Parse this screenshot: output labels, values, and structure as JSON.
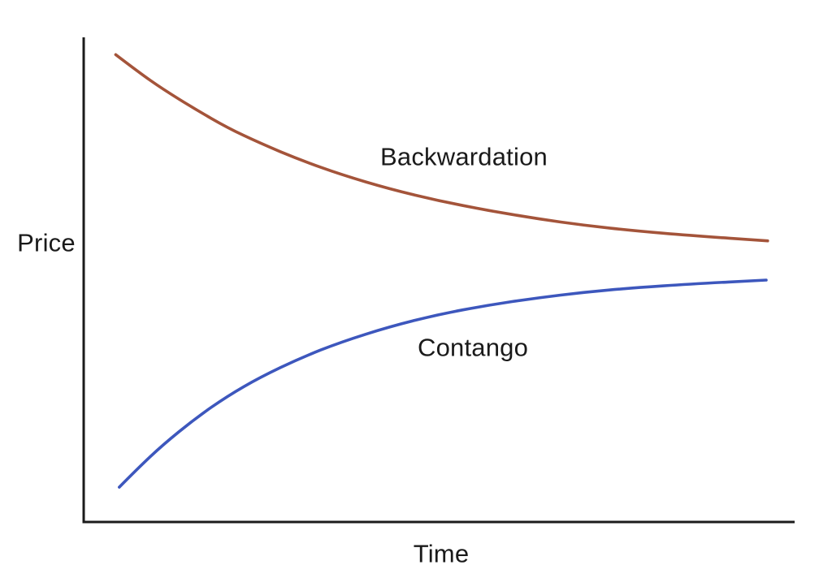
{
  "page": {
    "background_color": "#ffffff"
  },
  "chart_data": {
    "type": "line",
    "title": "",
    "xlabel": "Time",
    "ylabel": "Price",
    "grid": false,
    "legend_position": "inline-curve-annotations",
    "axes": {
      "axis_color": "#1b1b1b",
      "ticks_visible": false,
      "tick_labels": [],
      "x_range_norm": [
        0,
        1
      ],
      "y_range_norm": [
        0,
        1
      ]
    },
    "series": [
      {
        "name": "Backwardation",
        "color": "#a4543a",
        "points": [
          [
            0.045,
            0.966
          ],
          [
            0.077,
            0.93
          ],
          [
            0.111,
            0.895
          ],
          [
            0.157,
            0.853
          ],
          [
            0.202,
            0.815
          ],
          [
            0.248,
            0.783
          ],
          [
            0.305,
            0.748
          ],
          [
            0.362,
            0.718
          ],
          [
            0.431,
            0.688
          ],
          [
            0.499,
            0.664
          ],
          [
            0.568,
            0.644
          ],
          [
            0.637,
            0.627
          ],
          [
            0.705,
            0.613
          ],
          [
            0.774,
            0.602
          ],
          [
            0.854,
            0.592
          ],
          [
            0.962,
            0.581
          ]
        ]
      },
      {
        "name": "Contango",
        "color": "#3d57bd",
        "points": [
          [
            0.05,
            0.072
          ],
          [
            0.077,
            0.112
          ],
          [
            0.111,
            0.159
          ],
          [
            0.157,
            0.214
          ],
          [
            0.202,
            0.26
          ],
          [
            0.248,
            0.299
          ],
          [
            0.305,
            0.339
          ],
          [
            0.362,
            0.372
          ],
          [
            0.431,
            0.404
          ],
          [
            0.499,
            0.429
          ],
          [
            0.568,
            0.448
          ],
          [
            0.637,
            0.463
          ],
          [
            0.705,
            0.475
          ],
          [
            0.774,
            0.484
          ],
          [
            0.854,
            0.492
          ],
          [
            0.96,
            0.5
          ]
        ]
      }
    ]
  }
}
